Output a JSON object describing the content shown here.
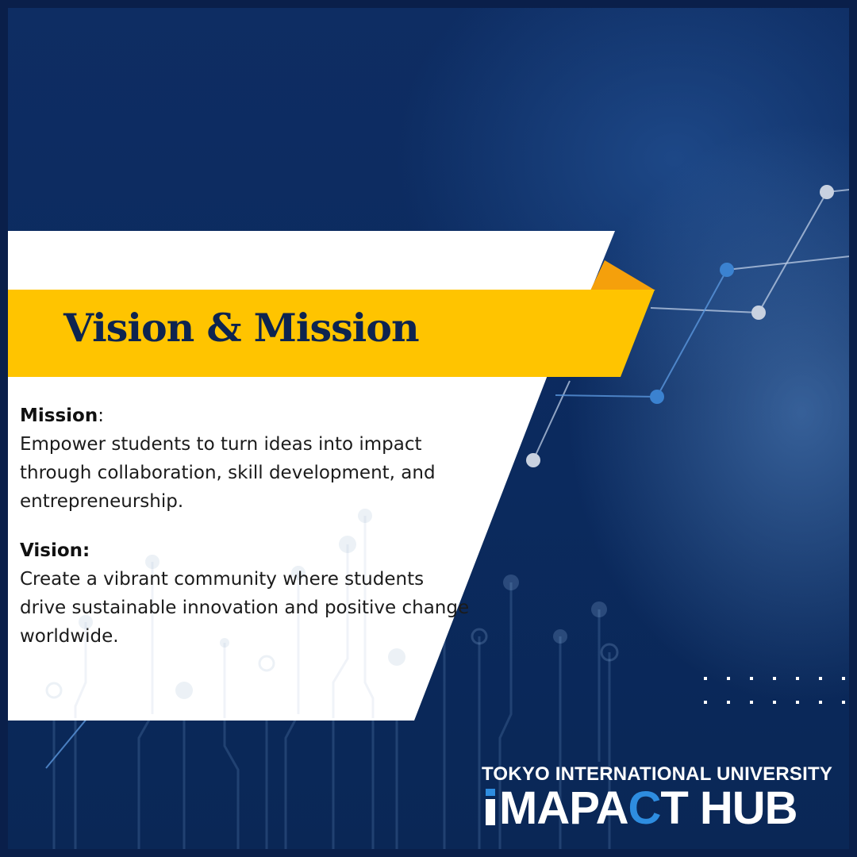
{
  "heading": "Vision & Mission",
  "mission": {
    "title": "Mission",
    "colon": ":",
    "text": "Empower students to turn ideas into impact through collaboration, skill development, and entrepreneurship."
  },
  "vision": {
    "title": "Vision:",
    "text": "Create a vibrant community where students drive sustainable innovation and positive change worldwide."
  },
  "logo": {
    "university": "TOKYO INTERNATIONAL UNIVERSITY",
    "hub_part1": "MAPA",
    "hub_accent": "C",
    "hub_part2": "T HUB"
  },
  "colors": {
    "navy": "#0d2a5c",
    "yellow": "#ffc400",
    "orange": "#f5a00b",
    "heading_text": "#0d2450",
    "logo_accent": "#2e8de0"
  }
}
